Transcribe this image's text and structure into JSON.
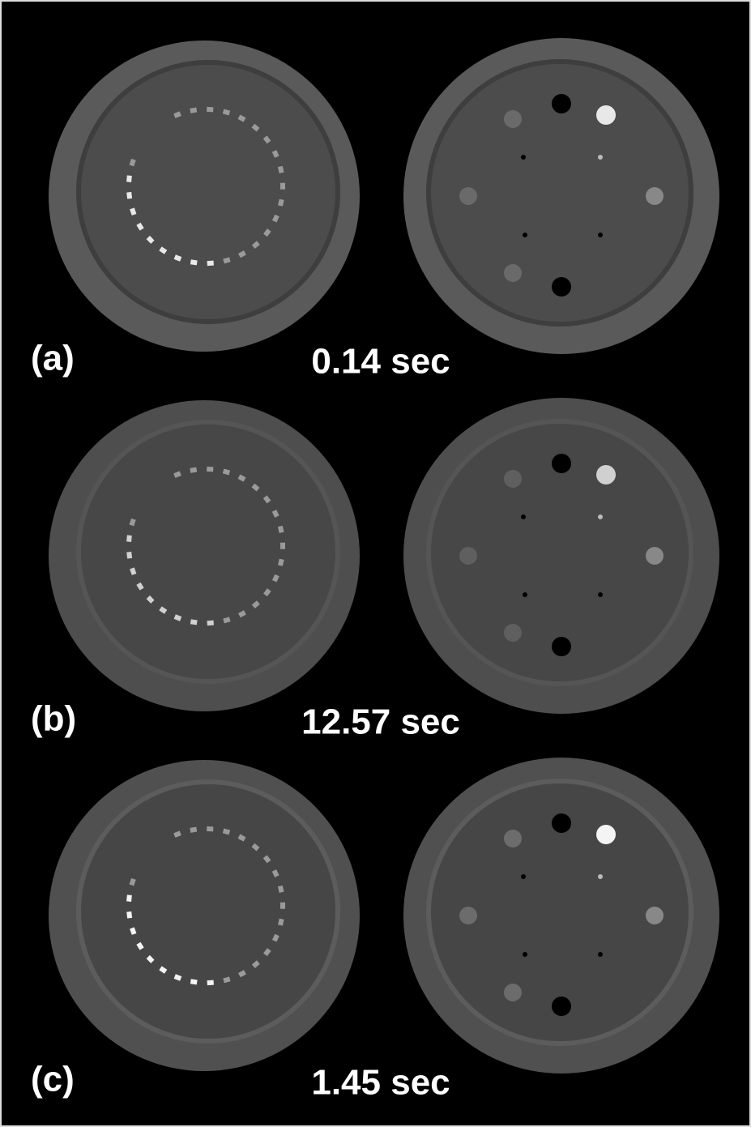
{
  "panels": [
    {
      "label": "(a)",
      "time": "0.14 sec"
    },
    {
      "label": "(b)",
      "time": "12.57 sec"
    },
    {
      "label": "(c)",
      "time": "1.45 sec"
    }
  ]
}
